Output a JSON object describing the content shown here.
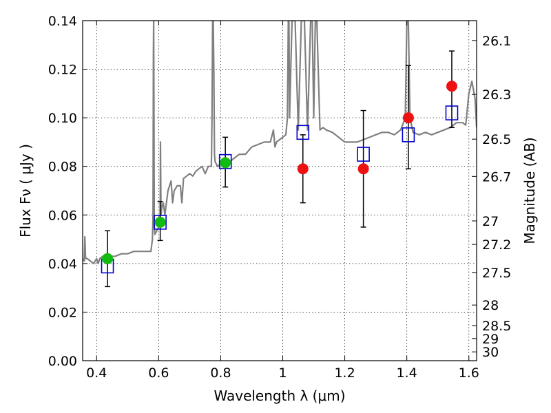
{
  "chart_data": {
    "type": "scatter",
    "title": "",
    "xlabel": "Wavelength  λ (μm)",
    "ylabel": "Flux  Fν  ( μJy )",
    "y2label": "Magnitude (AB)",
    "xlim": [
      0.355,
      1.625
    ],
    "ylim": [
      0.0,
      0.14
    ],
    "grid": true,
    "x_ticks": [
      {
        "value": 0.4,
        "label": "0.4"
      },
      {
        "value": 0.6,
        "label": "0.6"
      },
      {
        "value": 0.8,
        "label": "0.8"
      },
      {
        "value": 1.0,
        "label": "1"
      },
      {
        "value": 1.2,
        "label": "1.2"
      },
      {
        "value": 1.4,
        "label": "1.4"
      },
      {
        "value": 1.6,
        "label": "1.6"
      }
    ],
    "y_ticks": [
      {
        "value": 0.0,
        "label": "0.00"
      },
      {
        "value": 0.02,
        "label": "0.02"
      },
      {
        "value": 0.04,
        "label": "0.04"
      },
      {
        "value": 0.06,
        "label": "0.06"
      },
      {
        "value": 0.08,
        "label": "0.08"
      },
      {
        "value": 0.1,
        "label": "0.10"
      },
      {
        "value": 0.12,
        "label": "0.12"
      },
      {
        "value": 0.14,
        "label": "0.14"
      }
    ],
    "y2_ticks": [
      {
        "value": 26.1,
        "label": "26.1"
      },
      {
        "value": 26.3,
        "label": "26.3"
      },
      {
        "value": 26.5,
        "label": "26.5"
      },
      {
        "value": 26.7,
        "label": "26.7"
      },
      {
        "value": 27.0,
        "label": "27"
      },
      {
        "value": 27.2,
        "label": "27.2"
      },
      {
        "value": 27.5,
        "label": "27.5"
      },
      {
        "value": 28.0,
        "label": "28"
      },
      {
        "value": 28.5,
        "label": "28.5"
      },
      {
        "value": 29.0,
        "label": "29"
      },
      {
        "value": 30.0,
        "label": "30"
      }
    ],
    "colors": {
      "spectrum": "#808080",
      "model_box": "#0000cc",
      "observed_optical": "#11bb11",
      "observed_nir": "#ee1111",
      "errorbar": "#000000"
    },
    "series": [
      {
        "kind": "spectrum",
        "x": [
          0.355,
          0.36,
          0.362,
          0.364,
          0.366,
          0.37,
          0.38,
          0.39,
          0.4,
          0.405,
          0.41,
          0.42,
          0.44,
          0.46,
          0.48,
          0.5,
          0.52,
          0.54,
          0.56,
          0.575,
          0.58,
          0.582,
          0.583,
          0.584,
          0.585,
          0.586,
          0.588,
          0.6,
          0.605,
          0.606,
          0.607,
          0.608,
          0.61,
          0.615,
          0.62,
          0.63,
          0.64,
          0.645,
          0.65,
          0.66,
          0.67,
          0.675,
          0.68,
          0.69,
          0.7,
          0.71,
          0.72,
          0.73,
          0.74,
          0.75,
          0.76,
          0.77,
          0.772,
          0.774,
          0.776,
          0.778,
          0.78,
          0.782,
          0.79,
          0.8,
          0.82,
          0.84,
          0.86,
          0.88,
          0.9,
          0.92,
          0.94,
          0.96,
          0.97,
          0.975,
          0.98,
          1.0,
          1.01,
          1.015,
          1.018,
          1.02,
          1.022,
          1.03,
          1.04,
          1.05,
          1.06,
          1.07,
          1.08,
          1.09,
          1.095,
          1.1,
          1.105,
          1.11,
          1.12,
          1.13,
          1.14,
          1.16,
          1.18,
          1.2,
          1.22,
          1.24,
          1.26,
          1.28,
          1.3,
          1.32,
          1.34,
          1.36,
          1.38,
          1.395,
          1.4,
          1.405,
          1.41,
          1.42,
          1.44,
          1.46,
          1.48,
          1.5,
          1.52,
          1.54,
          1.56,
          1.58,
          1.59,
          1.6,
          1.61,
          1.62,
          1.625
        ],
        "y": [
          0.042,
          0.041,
          0.051,
          0.043,
          0.042,
          0.042,
          0.041,
          0.04,
          0.042,
          0.04,
          0.042,
          0.043,
          0.043,
          0.043,
          0.044,
          0.044,
          0.045,
          0.045,
          0.045,
          0.045,
          0.05,
          0.06,
          0.125,
          0.14,
          0.1,
          0.055,
          0.052,
          0.055,
          0.06,
          0.09,
          0.07,
          0.06,
          0.063,
          0.065,
          0.06,
          0.07,
          0.074,
          0.065,
          0.07,
          0.072,
          0.072,
          0.065,
          0.075,
          0.076,
          0.077,
          0.076,
          0.078,
          0.079,
          0.08,
          0.077,
          0.08,
          0.08,
          0.1,
          0.14,
          0.14,
          0.12,
          0.085,
          0.082,
          0.08,
          0.081,
          0.081,
          0.083,
          0.085,
          0.085,
          0.088,
          0.089,
          0.09,
          0.09,
          0.095,
          0.088,
          0.09,
          0.092,
          0.093,
          0.1,
          0.14,
          0.14,
          0.1,
          0.14,
          0.14,
          0.095,
          0.14,
          0.14,
          0.095,
          0.14,
          0.14,
          0.1,
          0.14,
          0.14,
          0.095,
          0.096,
          0.095,
          0.094,
          0.092,
          0.09,
          0.09,
          0.09,
          0.091,
          0.092,
          0.093,
          0.094,
          0.094,
          0.093,
          0.095,
          0.1,
          0.14,
          0.14,
          0.1,
          0.094,
          0.093,
          0.094,
          0.093,
          0.094,
          0.095,
          0.096,
          0.098,
          0.098,
          0.097,
          0.11,
          0.115,
          0.108,
          0.096
        ]
      },
      {
        "kind": "model_boxes",
        "x": [
          0.435,
          0.605,
          0.815,
          1.065,
          1.26,
          1.405,
          1.545
        ],
        "y": [
          0.039,
          0.057,
          0.082,
          0.094,
          0.085,
          0.093,
          0.102
        ]
      },
      {
        "kind": "observed_optical",
        "x": [
          0.435,
          0.605,
          0.815
        ],
        "y": [
          0.042,
          0.057,
          0.0815
        ],
        "err_low": [
          0.0115,
          0.0075,
          0.01
        ],
        "err_high": [
          0.0115,
          0.0085,
          0.0105
        ]
      },
      {
        "kind": "observed_nir",
        "x": [
          1.065,
          1.26,
          1.405,
          1.545
        ],
        "y": [
          0.079,
          0.079,
          0.1,
          0.113
        ],
        "err_low": [
          0.014,
          0.024,
          0.021,
          0.017
        ],
        "err_high": [
          0.014,
          0.024,
          0.0215,
          0.0145
        ]
      }
    ]
  }
}
